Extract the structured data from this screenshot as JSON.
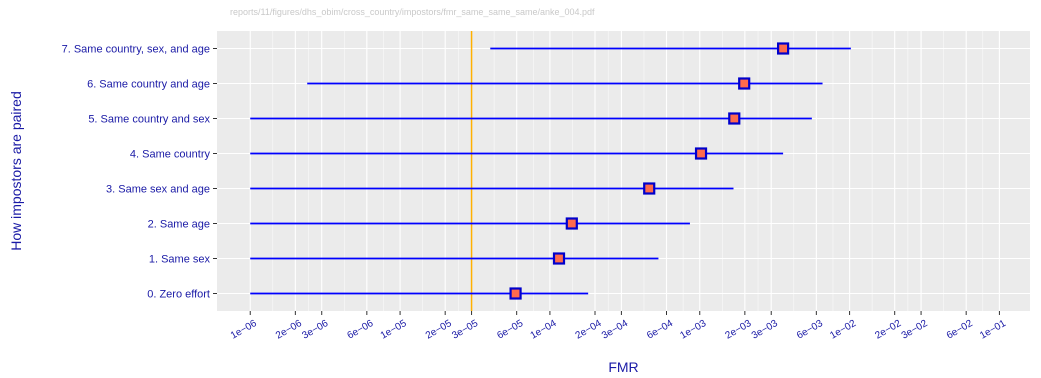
{
  "header": {
    "file_path": "reports/11/figures/dhs_obim/cross_country/impostors/fmr_same_same_same/anke_004.pdf"
  },
  "chart_data": {
    "type": "errorbar",
    "xlabel": "FMR",
    "ylabel": "How impostors are paired",
    "x_scale": "log",
    "xlim": [
      6e-07,
      0.16
    ],
    "x_ticks": [
      1e-06,
      2e-06,
      3e-06,
      6e-06,
      1e-05,
      2e-05,
      3e-05,
      6e-05,
      0.0001,
      0.0002,
      0.0003,
      0.0006,
      0.001,
      0.002,
      0.003,
      0.006,
      0.01,
      0.02,
      0.03,
      0.06,
      0.1
    ],
    "x_tick_labels": [
      "1e−06",
      "2e−06",
      "3e−06",
      "6e−06",
      "1e−05",
      "2e−05",
      "3e−05",
      "6e−05",
      "1e−04",
      "2e−04",
      "3e−04",
      "6e−04",
      "1e−03",
      "2e−03",
      "3e−03",
      "6e−03",
      "1e−02",
      "2e−02",
      "3e−02",
      "6e−02",
      "1e−01"
    ],
    "reference_line": {
      "x": 3e-05,
      "color": "#ffb000"
    },
    "colors": {
      "line": "#0000ff",
      "point_fill": "#ff6a4d",
      "point_edge": "#0000cc",
      "panel_bg": "#ebebeb",
      "grid": "#ffffff",
      "label": "#1a1aa6"
    },
    "categories": [
      "0. Zero effort",
      "1. Same sex",
      "2. Same age",
      "3. Same sex and age",
      "4. Same country",
      "5. Same country and sex",
      "6. Same country and age",
      "7. Same country, sex, and age"
    ],
    "points": [
      {
        "label": "0. Zero effort",
        "value": 5.9e-05,
        "low": 1e-06,
        "high": 0.00018
      },
      {
        "label": "1. Same sex",
        "value": 0.000115,
        "low": 1e-06,
        "high": 0.00053
      },
      {
        "label": "2. Same age",
        "value": 0.00014,
        "low": 1e-06,
        "high": 0.00086
      },
      {
        "label": "3. Same sex and age",
        "value": 0.00046,
        "low": 1e-06,
        "high": 0.00168
      },
      {
        "label": "4. Same country",
        "value": 0.00102,
        "low": 1e-06,
        "high": 0.0036
      },
      {
        "label": "5. Same country and sex",
        "value": 0.0017,
        "low": 1e-06,
        "high": 0.0056
      },
      {
        "label": "6. Same country and age",
        "value": 0.00198,
        "low": 2.4e-06,
        "high": 0.0066
      },
      {
        "label": "7. Same country, sex, and age",
        "value": 0.0036,
        "low": 4e-05,
        "high": 0.0102
      }
    ]
  }
}
